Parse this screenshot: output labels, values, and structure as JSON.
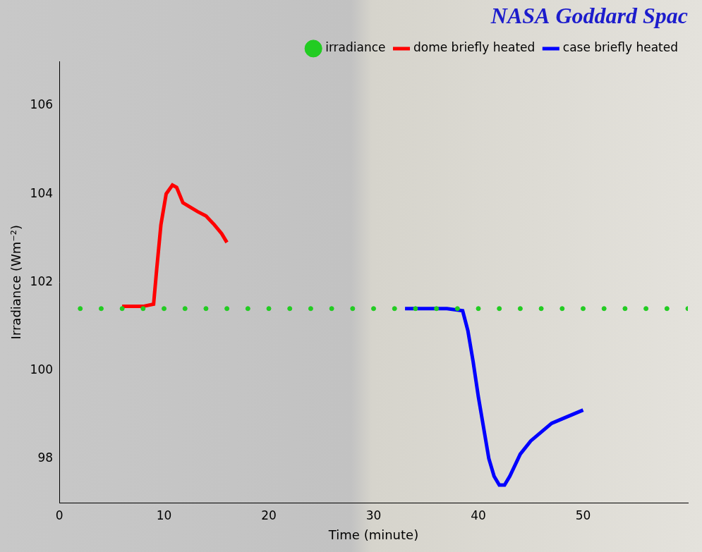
{
  "chart_data": {
    "type": "line",
    "title": "NASA Goddard Spac",
    "x_label": "Time (minute)",
    "y_label": "Irradiance (Wm⁻²)",
    "xlim": [
      0,
      60
    ],
    "xticks": [
      0,
      10,
      20,
      30,
      40,
      50
    ],
    "ylim": [
      97,
      107
    ],
    "yticks": [
      98,
      100,
      102,
      104,
      106
    ],
    "grid": false,
    "legend": "top",
    "series": [
      {
        "name": "irradiance",
        "type": "scatter",
        "marker": "circle",
        "color": "#22cc22",
        "x": [
          2,
          4,
          6,
          8,
          10,
          12,
          14,
          16,
          18,
          20,
          22,
          24,
          26,
          28,
          30,
          32,
          34,
          36,
          38,
          40,
          42,
          44,
          46,
          48,
          50,
          52,
          54,
          56,
          58,
          60
        ],
        "values": [
          101.4,
          101.4,
          101.4,
          101.4,
          101.4,
          101.4,
          101.4,
          101.4,
          101.4,
          101.4,
          101.4,
          101.4,
          101.4,
          101.4,
          101.4,
          101.4,
          101.4,
          101.4,
          101.4,
          101.4,
          101.4,
          101.4,
          101.4,
          101.4,
          101.4,
          101.4,
          101.4,
          101.4,
          101.4,
          101.4
        ]
      },
      {
        "name": "dome briefly heated",
        "type": "line",
        "color": "#ff0000",
        "x": [
          6,
          7,
          8,
          9,
          9.3,
          9.7,
          10.2,
          10.8,
          11.2,
          11.8,
          12.5,
          13.2,
          14,
          14.8,
          15.5,
          16
        ],
        "values": [
          101.45,
          101.45,
          101.45,
          101.5,
          102.3,
          103.3,
          104.0,
          104.2,
          104.15,
          103.8,
          103.7,
          103.6,
          103.5,
          103.3,
          103.1,
          102.9
        ]
      },
      {
        "name": "case briefly heated",
        "type": "line",
        "color": "#0000ff",
        "x": [
          33,
          35,
          37,
          38.5,
          39,
          39.5,
          40,
          40.5,
          41,
          41.5,
          42,
          42.5,
          43,
          44,
          45,
          46,
          47,
          48,
          49,
          50
        ],
        "values": [
          101.4,
          101.4,
          101.4,
          101.35,
          100.9,
          100.2,
          99.4,
          98.7,
          98.0,
          97.6,
          97.4,
          97.4,
          97.6,
          98.1,
          98.4,
          98.6,
          98.8,
          98.9,
          99.0,
          99.1
        ]
      }
    ]
  }
}
